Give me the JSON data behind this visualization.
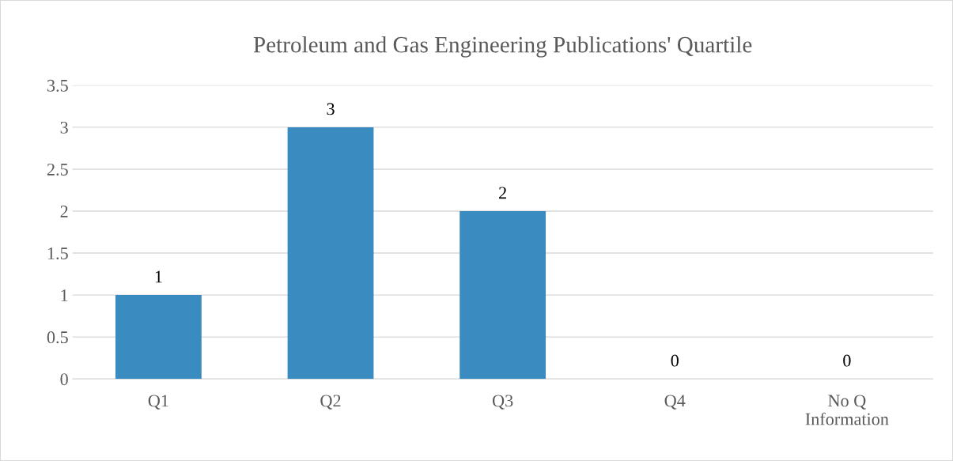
{
  "chart_data": {
    "type": "bar",
    "title": "Petroleum and Gas Engineering Publications' Quartile",
    "categories": [
      "Q1",
      "Q2",
      "Q3",
      "Q4",
      "No Q\nInformation"
    ],
    "values": [
      1,
      3,
      2,
      0,
      0
    ],
    "color": "#3a8bbf",
    "ylim": [
      0,
      3.5
    ],
    "yticks": [
      0,
      0.5,
      1,
      1.5,
      2,
      2.5,
      3,
      3.5
    ],
    "grid": "y",
    "data_labels": true
  }
}
